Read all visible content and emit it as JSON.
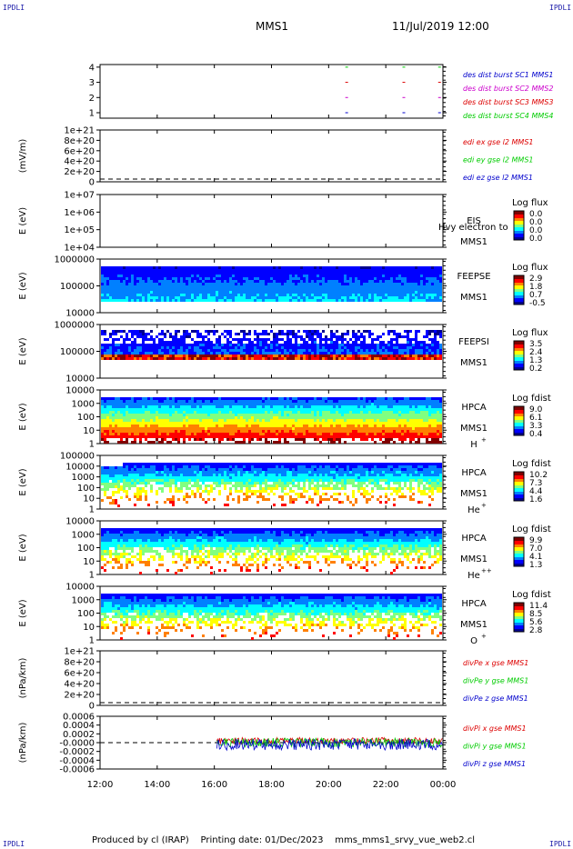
{
  "corner_tl": "IPDLI",
  "corner_tr": "IPDLI",
  "corner_bl": "IPDLI",
  "corner_br": "IPDLI",
  "header": {
    "spacecraft": "MMS1",
    "datetime": "11/Jul/2019 12:00"
  },
  "footer": {
    "produced_by": "Produced by cl (IRAP)",
    "printing_date": "Printing date: 01/Dec/2023",
    "file": "mms_mms1_srvy_vue_web2.cl"
  },
  "colors": {
    "red": "#dd0000",
    "green": "#00cc00",
    "blue": "#0000cc",
    "magenta": "#cc00cc"
  },
  "chart_data": [
    {
      "type": "scatter",
      "id": "des_dist",
      "ylabel": "",
      "yticks": [
        "1",
        "2",
        "3",
        "4"
      ],
      "x_ticks": [
        "12:00",
        "14:00",
        "16:00",
        "18:00",
        "20:00",
        "22:00",
        "00:00"
      ],
      "x_range": [
        "12:00",
        "00:00"
      ],
      "legend": [
        {
          "text": "des dist burst SC1 MMS1",
          "color": "#0000cc"
        },
        {
          "text": "des dist burst SC2 MMS2",
          "color": "#cc00cc"
        },
        {
          "text": "des dist burst SC3 MMS3",
          "color": "#dd0000"
        },
        {
          "text": "des dist burst SC4 MMS4",
          "color": "#00cc00"
        }
      ],
      "series": [
        {
          "name": "des dist burst SC1 MMS1",
          "x": [
            "20:35",
            "22:35",
            "23:50"
          ],
          "y": 1
        },
        {
          "name": "des dist burst SC2 MMS2",
          "x": [
            "20:35",
            "22:35",
            "23:50"
          ],
          "y": 2
        },
        {
          "name": "des dist burst SC3 MMS3",
          "x": [
            "20:35",
            "22:35",
            "23:50"
          ],
          "y": 3
        },
        {
          "name": "des dist burst SC4 MMS4",
          "x": [
            "20:35",
            "22:35",
            "23:50"
          ],
          "y": 4
        }
      ]
    },
    {
      "type": "line",
      "id": "edi_e",
      "ylabel": "(mV/m)",
      "yticks": [
        "0",
        "2e+20",
        "4e+20",
        "6e+20",
        "8e+20",
        "1e+21"
      ],
      "ylim": [
        0,
        1e+21
      ],
      "legend": [
        {
          "text": "edi ex gse l2 MMS1",
          "color": "#dd0000"
        },
        {
          "text": "edi ey gse l2 MMS1",
          "color": "#00cc00"
        },
        {
          "text": "edi ez gse l2 MMS1",
          "color": "#0000cc"
        }
      ],
      "zero_line": "dashed"
    },
    {
      "type": "heatmap",
      "id": "eis",
      "ylabel": "E (eV)",
      "yticks": [
        "1e+04",
        "1e+05",
        "1e+06",
        "1e+07"
      ],
      "instrument": "EIS",
      "spacecraft": "MMS1",
      "overlay_text": "Hvy electron to",
      "cbar_title": "Log flux",
      "cbar_ticks": [
        "0.0",
        "0.0",
        "0.0",
        "0.0"
      ],
      "empty": true
    },
    {
      "type": "heatmap",
      "id": "feepse",
      "ylabel": "E (eV)",
      "yticks": [
        "10000",
        "100000",
        "1000000"
      ],
      "instrument": "FEEPSE",
      "spacecraft": "MMS1",
      "cbar_title": "Log flux",
      "cbar_ticks": [
        "2.9",
        "1.8",
        "0.7",
        "-0.5"
      ]
    },
    {
      "type": "heatmap",
      "id": "feepsi",
      "ylabel": "E (eV)",
      "yticks": [
        "10000",
        "100000",
        "1000000"
      ],
      "instrument": "FEEPSI",
      "spacecraft": "MMS1",
      "cbar_title": "Log flux",
      "cbar_ticks": [
        "3.5",
        "2.4",
        "1.3",
        "0.2"
      ]
    },
    {
      "type": "heatmap",
      "id": "hpca_h",
      "ylabel": "E (eV)",
      "yticks": [
        "1",
        "10",
        "100",
        "1000",
        "10000"
      ],
      "instrument": "HPCA",
      "spacecraft": "MMS1",
      "species": "H",
      "species_sup": "+",
      "cbar_title": "Log fdist",
      "cbar_ticks": [
        "9.0",
        "6.1",
        "3.3",
        "0.4"
      ]
    },
    {
      "type": "heatmap",
      "id": "hpca_he",
      "ylabel": "E (eV)",
      "yticks": [
        "1",
        "10",
        "100",
        "1000",
        "10000",
        "100000"
      ],
      "instrument": "HPCA",
      "spacecraft": "MMS1",
      "species": "He",
      "species_sup": "+",
      "cbar_title": "Log fdist",
      "cbar_ticks": [
        "10.2",
        "7.3",
        "4.4",
        "1.6"
      ]
    },
    {
      "type": "heatmap",
      "id": "hpca_hepp",
      "ylabel": "E (eV)",
      "yticks": [
        "1",
        "10",
        "100",
        "1000",
        "10000"
      ],
      "instrument": "HPCA",
      "spacecraft": "MMS1",
      "species": "He",
      "species_sup": "++",
      "cbar_title": "Log fdist",
      "cbar_ticks": [
        "9.9",
        "7.0",
        "4.1",
        "1.3"
      ]
    },
    {
      "type": "heatmap",
      "id": "hpca_o",
      "ylabel": "E (eV)",
      "yticks": [
        "1",
        "10",
        "100",
        "1000",
        "10000"
      ],
      "instrument": "HPCA",
      "spacecraft": "MMS1",
      "species": "O",
      "species_sup": "+",
      "cbar_title": "Log fdist",
      "cbar_ticks": [
        "11.4",
        "8.5",
        "5.6",
        "2.8"
      ]
    },
    {
      "type": "line",
      "id": "divpe",
      "ylabel": "(nPa/km)",
      "yticks": [
        "0",
        "2e+20",
        "4e+20",
        "6e+20",
        "8e+20",
        "1e+21"
      ],
      "ylim": [
        0,
        1e+21
      ],
      "legend": [
        {
          "text": "divPe x gse MMS1",
          "color": "#dd0000"
        },
        {
          "text": "divPe y gse MMS1",
          "color": "#00cc00"
        },
        {
          "text": "divPe z gse MMS1",
          "color": "#0000cc"
        }
      ],
      "zero_line": "dashed"
    },
    {
      "type": "line",
      "id": "divpi",
      "ylabel": "(nPa/km)",
      "yticks": [
        "-0.0006",
        "-0.0004",
        "-0.0002",
        "-0.0000",
        "0.0002",
        "0.0004",
        "0.0006"
      ],
      "ylim": [
        -0.0007,
        0.0007
      ],
      "legend": [
        {
          "text": "divPi x gse MMS1",
          "color": "#dd0000"
        },
        {
          "text": "divPi y gse MMS1",
          "color": "#00cc00"
        },
        {
          "text": "divPi z gse MMS1",
          "color": "#0000cc"
        }
      ],
      "data_start": "16:05",
      "data_end": "00:00",
      "noise_amplitude": 0.00015,
      "zero_line": "dashed"
    }
  ]
}
